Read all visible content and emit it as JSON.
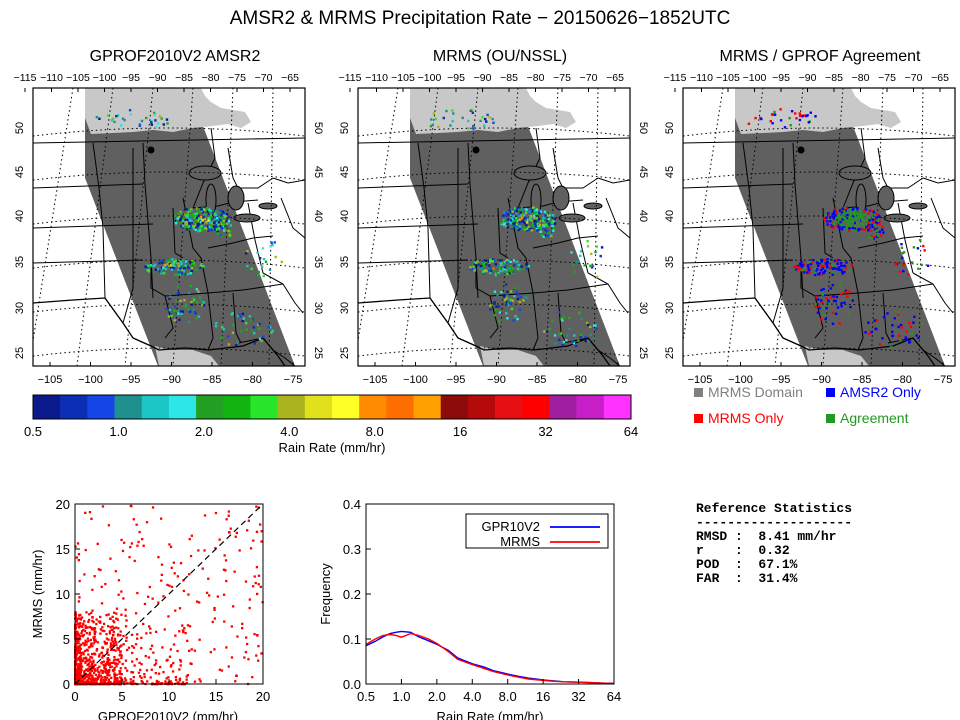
{
  "title": "AMSR2 & MRMS Precipitation Rate − 20150626−1852UTC",
  "map_panels": [
    {
      "title": "GPROF2010V2 AMSR2",
      "mode": "rain"
    },
    {
      "title": "MRMS (OU/NSSL)",
      "mode": "rain"
    },
    {
      "title": "MRMS / GPROF Agreement",
      "mode": "agree"
    }
  ],
  "map_axes": {
    "top_lon_labels": [
      "−115",
      "−110",
      "−105",
      "−100",
      "−95",
      "−90",
      "−85",
      "−80",
      "−75",
      "−70",
      "−65"
    ],
    "bottom_lon_labels": [
      "−105",
      "−100",
      "−95",
      "−90",
      "−85",
      "−80",
      "−75"
    ],
    "lat_labels": [
      "50",
      "45",
      "40",
      "35",
      "30",
      "25"
    ]
  },
  "colorbar": {
    "colors": [
      "#0a1a8c",
      "#0a2fb4",
      "#1446e6",
      "#1e9090",
      "#1cc6c6",
      "#2de6e6",
      "#23a023",
      "#12b412",
      "#2ae62a",
      "#aab41e",
      "#e0e01c",
      "#ffff28",
      "#ff8c00",
      "#ff6e00",
      "#ffa000",
      "#8c0a0a",
      "#b40a0a",
      "#e60f14",
      "#ff0000",
      "#a01ea0",
      "#c81ec8",
      "#ff32ff"
    ],
    "tick_labels": [
      "0.5",
      "1.0",
      "2.0",
      "4.0",
      "8.0",
      "16",
      "32",
      "64"
    ],
    "label": "Rain Rate (mm/hr)"
  },
  "agreement_legend": [
    {
      "label": "MRMS Domain",
      "color": "#808080"
    },
    {
      "label": "AMSR2 Only",
      "color": "#0000ff"
    },
    {
      "label": "MRMS Only",
      "color": "#ff0000"
    },
    {
      "label": "Agreement",
      "color": "#229922"
    }
  ],
  "chart_data": [
    {
      "type": "scatter",
      "xlabel": "GPROF2010V2 (mm/hr)",
      "ylabel": "MRMS (mm/hr)",
      "xlim": [
        0,
        20
      ],
      "ylim": [
        0,
        20
      ],
      "x_ticks": [
        "0",
        "5",
        "10",
        "15",
        "20"
      ],
      "y_ticks": [
        "0",
        "5",
        "10",
        "15",
        "20"
      ],
      "reference_line": "1:1 dashed",
      "color": "#ff0000"
    },
    {
      "type": "line",
      "xlabel": "Rain Rate (mm/hr)",
      "ylabel": "Frequency",
      "x_ticks": [
        "0.5",
        "1.0",
        "2.0",
        "4.0",
        "8.0",
        "16",
        "32",
        "64"
      ],
      "y_ticks": [
        "0.0",
        "0.1",
        "0.2",
        "0.3",
        "0.4"
      ],
      "ylim": [
        0,
        0.4
      ],
      "x": [
        0.5,
        0.6,
        0.7,
        0.8,
        0.9,
        1.0,
        1.2,
        1.4,
        1.7,
        2.0,
        2.5,
        3.0,
        4.0,
        5.0,
        6.0,
        8.0,
        10,
        12,
        16,
        20,
        24,
        32,
        40,
        50,
        64
      ],
      "series": [
        {
          "name": "GPR10V2",
          "color": "#0000ff",
          "values": [
            0.085,
            0.095,
            0.105,
            0.112,
            0.115,
            0.117,
            0.115,
            0.105,
            0.096,
            0.088,
            0.075,
            0.058,
            0.045,
            0.038,
            0.03,
            0.022,
            0.017,
            0.013,
            0.009,
            0.007,
            0.005,
            0.004,
            0.003,
            0.002,
            0.001
          ]
        },
        {
          "name": "MRMS",
          "color": "#ff0000",
          "values": [
            0.088,
            0.1,
            0.108,
            0.11,
            0.108,
            0.104,
            0.112,
            0.108,
            0.1,
            0.09,
            0.072,
            0.055,
            0.043,
            0.035,
            0.028,
            0.02,
            0.015,
            0.011,
            0.008,
            0.006,
            0.005,
            0.004,
            0.003,
            0.002,
            0.001
          ]
        }
      ],
      "legend_position": "top-right"
    }
  ],
  "stats": {
    "title": "Reference Statistics",
    "divider": "--------------------",
    "rows": [
      "RMSD :  8.41 mm/hr",
      "r    :  0.32",
      "POD  :  67.1%",
      "FAR  :  31.4%"
    ]
  }
}
